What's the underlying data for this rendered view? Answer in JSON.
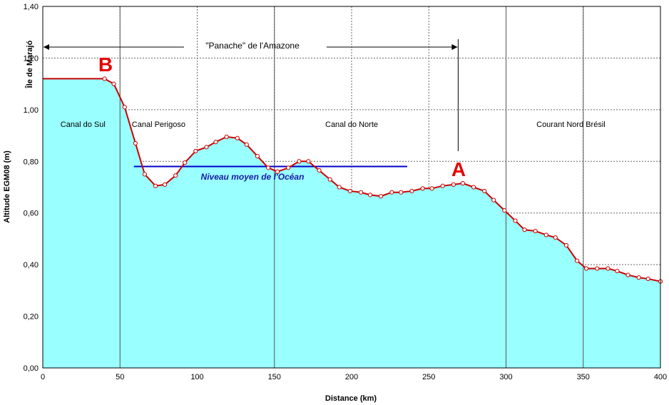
{
  "chart_data": {
    "type": "area",
    "title": "",
    "xlabel": "Distance  (km)",
    "ylabel": "Altitude EGM08  (m)",
    "xlim": [
      0,
      400
    ],
    "ylim": [
      0,
      1.4
    ],
    "x_ticks": [
      "0",
      "50",
      "100",
      "150",
      "200",
      "250",
      "300",
      "350",
      "400"
    ],
    "y_ticks": [
      "0,00",
      "0,20",
      "0,40",
      "0,60",
      "0,80",
      "1,00",
      "1,20",
      "1,40"
    ],
    "grid": true,
    "series": [
      {
        "x": [
          0,
          40,
          46,
          53,
          60,
          66,
          73,
          79,
          86,
          92,
          99,
          106,
          112,
          119,
          126,
          132,
          139,
          146,
          152,
          159,
          166,
          172,
          179,
          186,
          192,
          199,
          206,
          212,
          219,
          226,
          232,
          239,
          246,
          252,
          259,
          266,
          272,
          279,
          286,
          292,
          299,
          306,
          312,
          319,
          326,
          332,
          339,
          346,
          352,
          359,
          366,
          372,
          379,
          386,
          392,
          400
        ],
        "values": [
          1.12,
          1.12,
          1.1,
          1.01,
          0.87,
          0.75,
          0.705,
          0.71,
          0.745,
          0.795,
          0.84,
          0.855,
          0.875,
          0.895,
          0.89,
          0.865,
          0.82,
          0.775,
          0.76,
          0.775,
          0.8,
          0.8,
          0.765,
          0.73,
          0.7,
          0.685,
          0.68,
          0.67,
          0.665,
          0.68,
          0.68,
          0.685,
          0.695,
          0.695,
          0.705,
          0.71,
          0.715,
          0.7,
          0.685,
          0.65,
          0.61,
          0.57,
          0.535,
          0.53,
          0.515,
          0.505,
          0.475,
          0.415,
          0.385,
          0.385,
          0.385,
          0.375,
          0.36,
          0.35,
          0.345,
          0.335
        ]
      }
    ],
    "mean_ocean_level": {
      "label": "Niveau moyen de l'Océan",
      "value": 0.78,
      "x_range": [
        59,
        236
      ]
    },
    "regions": [
      {
        "label": "Canal do Sul",
        "x": 26
      },
      {
        "label": "Canal Perigoso",
        "x": 75
      },
      {
        "label": "Canal do Norte",
        "x": 200
      },
      {
        "label": "Courant Nord Brésil",
        "x": 342
      }
    ],
    "plume": {
      "label": "\"Panache\" de l'Amazone",
      "x_range": [
        0,
        269
      ]
    },
    "point_a": {
      "label": "A",
      "x": 269
    },
    "point_b": {
      "label": "B",
      "x": 40
    },
    "marajo_label": "Île de Marajó",
    "colors": {
      "fill": "#99ffff",
      "line": "#cc0000",
      "ocean_line": "#0000cc",
      "marker_text": "#e60000",
      "region_divider": "#555555"
    }
  }
}
